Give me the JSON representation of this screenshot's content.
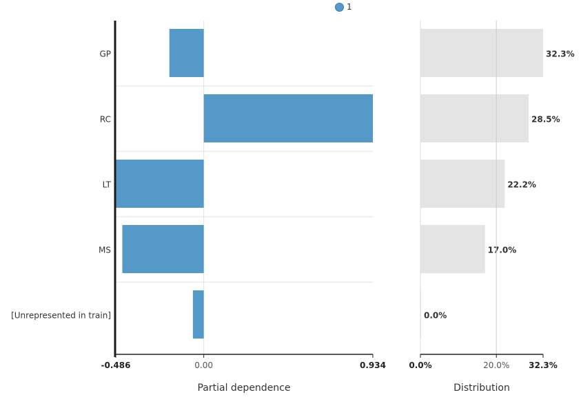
{
  "legend": {
    "label": "1",
    "color": "#5599c8"
  },
  "chart_data": [
    {
      "type": "bar",
      "orientation": "horizontal",
      "xlabel": "Partial dependence",
      "categories": [
        "GP",
        "RC",
        "LT",
        "MS",
        "[Unrepresented in train]"
      ],
      "series": [
        {
          "name": "1",
          "values": [
            -0.19,
            0.934,
            -0.486,
            -0.45,
            -0.06
          ]
        }
      ],
      "xlim": [
        -0.486,
        0.934
      ],
      "xticks": [
        "-0.486",
        "0.00",
        "0.934"
      ],
      "bar_color": "#5599c8",
      "grid": true
    },
    {
      "type": "bar",
      "orientation": "horizontal",
      "xlabel": "Distribution",
      "categories": [
        "GP",
        "RC",
        "LT",
        "MS",
        "[Unrepresented in train]"
      ],
      "values": [
        32.3,
        28.5,
        22.2,
        17.0,
        0.0
      ],
      "data_labels": [
        "32.3%",
        "28.5%",
        "22.2%",
        "17.0%",
        "0.0%"
      ],
      "xlim": [
        0,
        32.3
      ],
      "xticks": [
        "0.0%",
        "20.0%",
        "32.3%"
      ],
      "reference_line": 20.0,
      "bar_color": "#e3e4e3"
    }
  ]
}
